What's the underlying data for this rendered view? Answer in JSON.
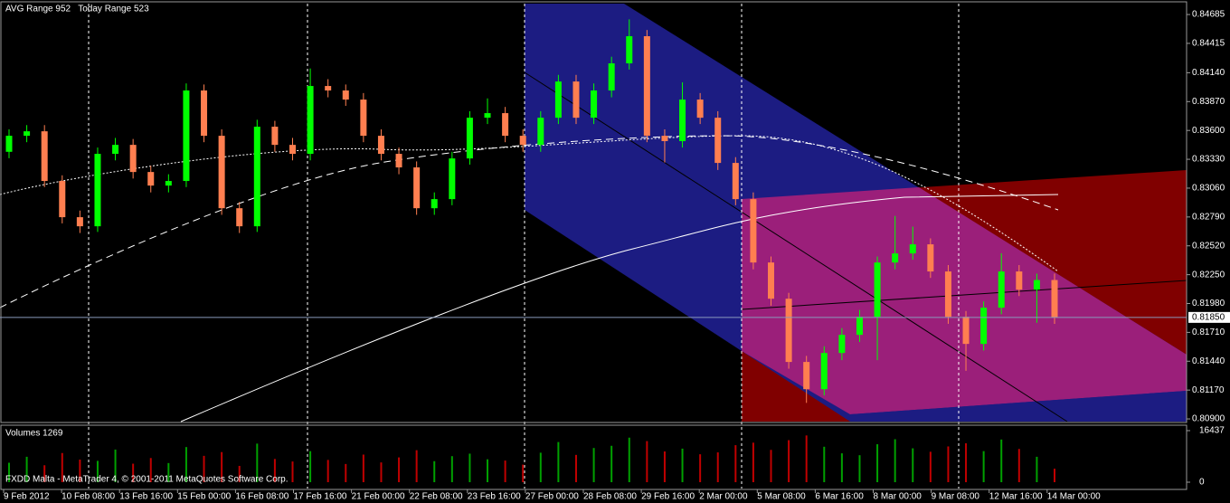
{
  "chart_data": {
    "type": "candlestick",
    "info": "AVG Range 952   Today Range 523",
    "volume_title": "Volumes 1269",
    "copyright": "FXDD Malta - MetaTrader 4, © 2001-2011 MetaQuotes Software Corp.",
    "up_color": "#00ff00",
    "down_color": "#ff7f50",
    "ylim": [
      0.80875,
      0.84787
    ],
    "yticks": [
      {
        "value": 0.84685,
        "label": "0.84685"
      },
      {
        "value": 0.84415,
        "label": "0.84415"
      },
      {
        "value": 0.8414,
        "label": "0.84140"
      },
      {
        "value": 0.8387,
        "label": "0.83870"
      },
      {
        "value": 0.836,
        "label": "0.83600"
      },
      {
        "value": 0.8333,
        "label": "0.83330"
      },
      {
        "value": 0.8306,
        "label": "0.83060"
      },
      {
        "value": 0.8279,
        "label": "0.82790"
      },
      {
        "value": 0.8252,
        "label": "0.82520"
      },
      {
        "value": 0.8225,
        "label": "0.82250"
      },
      {
        "value": 0.8198,
        "label": "0.81980"
      },
      {
        "value": 0.8171,
        "label": "0.81710"
      },
      {
        "value": 0.8144,
        "label": "0.81440"
      },
      {
        "value": 0.8117,
        "label": "0.81170"
      },
      {
        "value": 0.809,
        "label": "0.80900"
      }
    ],
    "current_price": {
      "value": 0.8185,
      "label": "0.81850"
    },
    "x_labels": [
      "9 Feb 2012",
      "10 Feb 08:00",
      "13 Feb 16:00",
      "15 Feb 00:00",
      "16 Feb 08:00",
      "17 Feb 16:00",
      "21 Feb 00:00",
      "22 Feb 08:00",
      "23 Feb 16:00",
      "27 Feb 00:00",
      "28 Feb 08:00",
      "29 Feb 16:00",
      "2 Mar 00:00",
      "5 Mar 08:00",
      "6 Mar 16:00",
      "8 Mar 00:00",
      "9 Mar 08:00",
      "12 Mar 16:00",
      "14 Mar 00:00"
    ],
    "open": [
      0.834,
      0.8355,
      0.83592,
      0.83127,
      0.82788,
      0.82703,
      0.83381,
      0.83465,
      0.83211,
      0.83084,
      0.83127,
      0.83974,
      0.8355,
      0.82872,
      0.82703,
      0.83635,
      0.83465,
      0.83381,
      0.84016,
      0.83974,
      0.83889,
      0.8355,
      0.83381,
      0.83254,
      0.82872,
      0.82957,
      0.83338,
      0.83719,
      0.83762,
      0.8355,
      0.83465,
      0.83719,
      0.84058,
      0.83719,
      0.83974,
      0.84228,
      0.84482,
      0.8355,
      0.835,
      0.83889,
      0.83719,
      0.83296,
      0.82957,
      0.82364,
      0.82025,
      0.81433,
      0.81178,
      0.81517,
      0.81687,
      0.81856,
      0.82364,
      0.82449,
      0.82534,
      0.8228,
      0.81856,
      0.81602,
      0.81941,
      0.8228,
      0.8211,
      0.822
    ],
    "high": [
      0.8361,
      0.8365,
      0.8365,
      0.8318,
      0.8285,
      0.8344,
      0.8353,
      0.8352,
      0.8327,
      0.8319,
      0.8404,
      0.8403,
      0.8361,
      0.8293,
      0.837,
      0.8369,
      0.8353,
      0.8418,
      0.8408,
      0.8403,
      0.8395,
      0.8361,
      0.8344,
      0.8331,
      0.8302,
      0.834,
      0.8378,
      0.839,
      0.8382,
      0.8361,
      0.8378,
      0.8412,
      0.8412,
      0.8404,
      0.8429,
      0.8464,
      0.8454,
      0.8361,
      0.8405,
      0.8395,
      0.8378,
      0.8335,
      0.8302,
      0.8242,
      0.8208,
      0.8149,
      0.8158,
      0.8175,
      0.8192,
      0.8242,
      0.828,
      0.827,
      0.8259,
      0.8234,
      0.8191,
      0.82,
      0.8245,
      0.8234,
      0.8226,
      0.8226
    ],
    "low": [
      0.8334,
      0.8349,
      0.8307,
      0.8273,
      0.8264,
      0.8265,
      0.8332,
      0.8315,
      0.8302,
      0.8302,
      0.8307,
      0.8349,
      0.8281,
      0.8264,
      0.8265,
      0.834,
      0.8332,
      0.8332,
      0.8391,
      0.8383,
      0.8349,
      0.8332,
      0.8319,
      0.8281,
      0.8281,
      0.829,
      0.8328,
      0.8366,
      0.8349,
      0.834,
      0.834,
      0.8366,
      0.8366,
      0.8366,
      0.8391,
      0.8417,
      0.8349,
      0.833,
      0.8344,
      0.8366,
      0.8323,
      0.829,
      0.823,
      0.8196,
      0.8137,
      0.8105,
      0.8112,
      0.8145,
      0.8162,
      0.8145,
      0.823,
      0.8239,
      0.8222,
      0.8179,
      0.8135,
      0.8154,
      0.8188,
      0.8205,
      0.818,
      0.8179
    ],
    "close": [
      0.8355,
      0.83592,
      0.83127,
      0.82788,
      0.82703,
      0.83381,
      0.83465,
      0.83211,
      0.83084,
      0.83127,
      0.83974,
      0.8355,
      0.82872,
      0.82703,
      0.83635,
      0.83465,
      0.83381,
      0.84016,
      0.83974,
      0.83889,
      0.8355,
      0.83381,
      0.83254,
      0.82872,
      0.82957,
      0.83338,
      0.83719,
      0.83762,
      0.8355,
      0.83465,
      0.83719,
      0.84058,
      0.83719,
      0.83974,
      0.84228,
      0.84482,
      0.8355,
      0.835,
      0.83889,
      0.83719,
      0.83296,
      0.82957,
      0.82364,
      0.82025,
      0.81433,
      0.81178,
      0.81517,
      0.81687,
      0.81856,
      0.82364,
      0.82449,
      0.82534,
      0.8228,
      0.81856,
      0.81602,
      0.81941,
      0.8228,
      0.8211,
      0.822,
      0.8185
    ],
    "volumes": [
      6200,
      8100,
      5400,
      9300,
      7200,
      6800,
      10400,
      5900,
      7700,
      6100,
      11200,
      8400,
      9600,
      5200,
      12300,
      7400,
      6600,
      9900,
      7100,
      5800,
      8800,
      6300,
      7900,
      10200,
      6700,
      8300,
      9100,
      7300,
      6900,
      5600,
      9400,
      12800,
      8700,
      10900,
      11600,
      14200,
      13100,
      9800,
      10700,
      8900,
      9500,
      11800,
      12600,
      10300,
      13400,
      14900,
      11300,
      9200,
      8600,
      12100,
      13700,
      10800,
      9700,
      11400,
      12400,
      9900,
      13600,
      10600,
      8100,
      4300
    ],
    "volume_ylim": [
      0,
      16437
    ],
    "volume_yticks": [
      16437,
      0
    ]
  }
}
